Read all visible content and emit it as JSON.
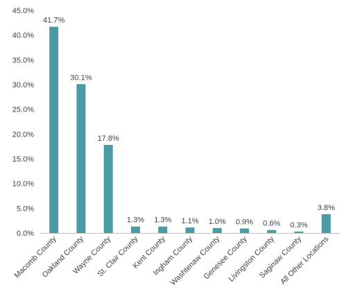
{
  "chart_data": {
    "type": "bar",
    "categories": [
      "Macomb County",
      "Oakland County",
      "Wayne County",
      "St. Clair County",
      "Kent County",
      "Ingham County",
      "Washtenaw County",
      "Genesee County",
      "Livingston County",
      "Saginaw County",
      "All Other Locations"
    ],
    "values": [
      41.7,
      30.1,
      17.8,
      1.3,
      1.3,
      1.1,
      1.0,
      0.9,
      0.6,
      0.3,
      3.8
    ],
    "data_labels": [
      "41.7%",
      "30.1%",
      "17.8%",
      "1.3%",
      "1.3%",
      "1.1%",
      "1.0%",
      "0.9%",
      "0.6%",
      "0.3%",
      "3.8%"
    ],
    "y_ticks": [
      0,
      5,
      10,
      15,
      20,
      25,
      30,
      35,
      40,
      45
    ],
    "y_tick_labels": [
      "0.0%",
      "5.0%",
      "10.0%",
      "15.0%",
      "20.0%",
      "25.0%",
      "30.0%",
      "35.0%",
      "40.0%",
      "45.0%"
    ],
    "ylim": [
      0,
      45
    ],
    "title": "",
    "xlabel": "",
    "ylabel": "",
    "grid": false,
    "legend": "none",
    "bar_color": "#4a9ba3",
    "axis_color": "#bfbfbf"
  }
}
